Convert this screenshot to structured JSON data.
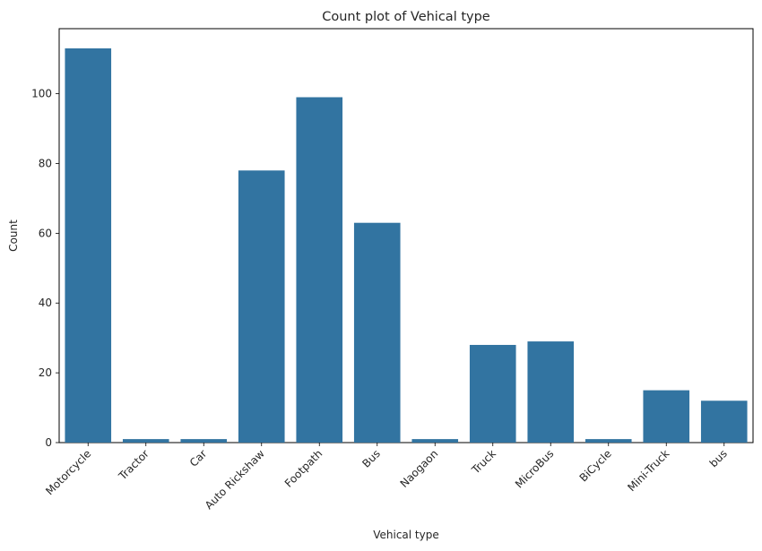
{
  "chart_data": {
    "type": "bar",
    "title": "Count plot of Vehical type",
    "xlabel": "Vehical type",
    "ylabel": "Count",
    "categories": [
      "Motorcycle",
      "Tractor",
      "Car",
      "Auto Rickshaw",
      "Footpath",
      "Bus",
      "Naogaon",
      "Truck",
      "MicroBus",
      "BiCycle",
      "Mini-Truck",
      "bus"
    ],
    "values": [
      113,
      1,
      1,
      78,
      99,
      63,
      1,
      28,
      29,
      1,
      15,
      12
    ],
    "ylim": [
      0,
      118.65
    ],
    "yticks": [
      0,
      20,
      40,
      60,
      80,
      100
    ],
    "bar_color": "#3274a1",
    "grid": false,
    "legend": false
  }
}
